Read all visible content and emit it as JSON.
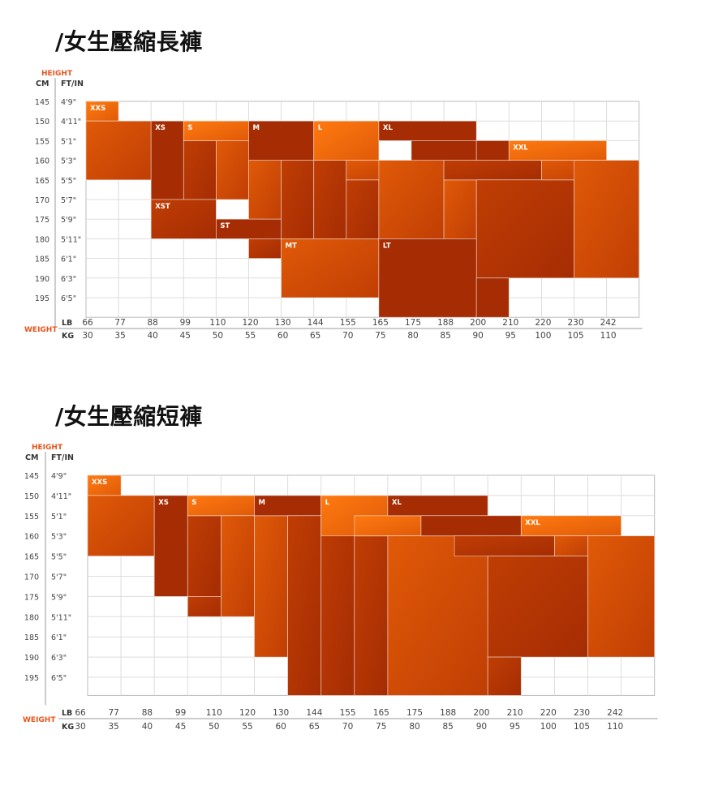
{
  "labels": {
    "height": "HEIGHT",
    "weight": "WEIGHT",
    "cm": "CM",
    "ftin": "FT/IN",
    "lb": "LB",
    "kg": "KG"
  },
  "colors": {
    "accent": "#e8541c",
    "light": "#ff7a10",
    "mid": "#e05a08",
    "dark": "#c03e04",
    "darker": "#a52c03",
    "grid": "#dddddd"
  },
  "chart_data": [
    {
      "type": "table",
      "title": "/女生壓縮長褲",
      "cm": [
        "145",
        "150",
        "155",
        "160",
        "165",
        "170",
        "175",
        "180",
        "185",
        "190",
        "195"
      ],
      "ftin": [
        "4'9\"",
        "4'11\"",
        "5'1\"",
        "5'3\"",
        "5'5\"",
        "5'7\"",
        "5'9\"",
        "5'11\"",
        "6'1\"",
        "6'3\"",
        "6'5\""
      ],
      "lb": [
        "66",
        "77",
        "88",
        "99",
        "110",
        "120",
        "130",
        "144",
        "155",
        "165",
        "175",
        "188",
        "200",
        "210",
        "220",
        "230",
        "242"
      ],
      "kg": [
        "30",
        "35",
        "40",
        "45",
        "50",
        "55",
        "60",
        "65",
        "70",
        "75",
        "80",
        "85",
        "90",
        "95",
        "100",
        "105",
        "110"
      ],
      "regions": [
        {
          "size": "XXS",
          "label": "XXS",
          "col": 0,
          "row": 0,
          "cols": 1,
          "rows": 1,
          "shade": "light"
        },
        {
          "size": "XXS",
          "label": "",
          "col": 0,
          "row": 1,
          "cols": 2,
          "rows": 3,
          "shade": "mid"
        },
        {
          "size": "XS",
          "label": "XS",
          "col": 2,
          "row": 1,
          "cols": 1,
          "rows": 4,
          "shade": "darker"
        },
        {
          "size": "XS",
          "label": "",
          "col": 3,
          "row": 2,
          "cols": 1,
          "rows": 3,
          "shade": "dark"
        },
        {
          "size": "S",
          "label": "S",
          "col": 3,
          "row": 1,
          "cols": 2,
          "rows": 1,
          "shade": "light"
        },
        {
          "size": "S",
          "label": "",
          "col": 4,
          "row": 2,
          "cols": 1,
          "rows": 3,
          "shade": "mid"
        },
        {
          "size": "S",
          "label": "",
          "col": 5,
          "row": 3,
          "cols": 1,
          "rows": 3,
          "shade": "mid"
        },
        {
          "size": "XST",
          "label": "XST",
          "col": 2,
          "row": 5,
          "cols": 2,
          "rows": 2,
          "shade": "dark"
        },
        {
          "size": "ST",
          "label": "ST",
          "col": 4,
          "row": 6,
          "cols": 2,
          "rows": 1,
          "shade": "darker"
        },
        {
          "size": "ST",
          "label": "",
          "col": 5,
          "row": 7,
          "cols": 1,
          "rows": 1,
          "shade": "dark"
        },
        {
          "size": "M",
          "label": "M",
          "col": 5,
          "row": 1,
          "cols": 2,
          "rows": 2,
          "shade": "darker"
        },
        {
          "size": "M",
          "label": "",
          "col": 6,
          "row": 3,
          "cols": 1,
          "rows": 4,
          "shade": "dark"
        },
        {
          "size": "M",
          "label": "",
          "col": 7,
          "row": 3,
          "cols": 1,
          "rows": 4,
          "shade": "dark"
        },
        {
          "size": "M",
          "label": "",
          "col": 8,
          "row": 4,
          "cols": 1,
          "rows": 3,
          "shade": "dark"
        },
        {
          "size": "MT",
          "label": "MT",
          "col": 6,
          "row": 7,
          "cols": 3,
          "rows": 3,
          "shade": "mid"
        },
        {
          "size": "L",
          "label": "L",
          "col": 7,
          "row": 1,
          "cols": 2,
          "rows": 2,
          "shade": "light"
        },
        {
          "size": "L",
          "label": "",
          "col": 8,
          "row": 3,
          "cols": 2,
          "rows": 1,
          "shade": "mid"
        },
        {
          "size": "L",
          "label": "",
          "col": 9,
          "row": 3,
          "cols": 2,
          "rows": 4,
          "shade": "mid"
        },
        {
          "size": "L",
          "label": "",
          "col": 11,
          "row": 4,
          "cols": 1,
          "rows": 3,
          "shade": "mid"
        },
        {
          "size": "XL",
          "label": "XL",
          "col": 9,
          "row": 1,
          "cols": 3,
          "rows": 1,
          "shade": "darker"
        },
        {
          "size": "XL",
          "label": "",
          "col": 10,
          "row": 2,
          "cols": 2,
          "rows": 1,
          "shade": "darker"
        },
        {
          "size": "XL",
          "label": "",
          "col": 12,
          "row": 2,
          "cols": 1,
          "rows": 1,
          "shade": "darker"
        },
        {
          "size": "XL",
          "label": "",
          "col": 11,
          "row": 3,
          "cols": 3,
          "rows": 1,
          "shade": "dark"
        },
        {
          "size": "XL",
          "label": "",
          "col": 12,
          "row": 4,
          "cols": 3,
          "rows": 5,
          "shade": "dark"
        },
        {
          "size": "LT",
          "label": "LT",
          "col": 9,
          "row": 7,
          "cols": 3,
          "rows": 5,
          "shade": "darker"
        },
        {
          "size": "LT",
          "label": "",
          "col": 12,
          "row": 9,
          "cols": 1,
          "rows": 2,
          "shade": "darker"
        },
        {
          "size": "XXL",
          "label": "XXL",
          "col": 13,
          "row": 2,
          "cols": 3,
          "rows": 1,
          "shade": "light"
        },
        {
          "size": "XXL",
          "label": "",
          "col": 14,
          "row": 3,
          "cols": 2,
          "rows": 1,
          "shade": "mid"
        },
        {
          "size": "XXL",
          "label": "",
          "col": 15,
          "row": 3,
          "cols": 2,
          "rows": 6,
          "shade": "mid"
        }
      ]
    },
    {
      "type": "table",
      "title": "/女生壓縮短褲",
      "cm": [
        "145",
        "150",
        "155",
        "160",
        "165",
        "170",
        "175",
        "180",
        "185",
        "190",
        "195"
      ],
      "ftin": [
        "4'9\"",
        "4'11\"",
        "5'1\"",
        "5'3\"",
        "5'5\"",
        "5'7\"",
        "5'9\"",
        "5'11\"",
        "6'1\"",
        "6'3\"",
        "6'5\""
      ],
      "lb": [
        "66",
        "77",
        "88",
        "99",
        "110",
        "120",
        "130",
        "144",
        "155",
        "165",
        "175",
        "188",
        "200",
        "210",
        "220",
        "230",
        "242"
      ],
      "kg": [
        "30",
        "35",
        "40",
        "45",
        "50",
        "55",
        "60",
        "65",
        "70",
        "75",
        "80",
        "85",
        "90",
        "95",
        "100",
        "105",
        "110"
      ],
      "regions": [
        {
          "size": "XXS",
          "label": "XXS",
          "col": 0,
          "row": 0,
          "cols": 1,
          "rows": 1,
          "shade": "light"
        },
        {
          "size": "XXS",
          "label": "",
          "col": 0,
          "row": 1,
          "cols": 2,
          "rows": 3,
          "shade": "mid"
        },
        {
          "size": "XS",
          "label": "XS",
          "col": 2,
          "row": 1,
          "cols": 1,
          "rows": 5,
          "shade": "darker"
        },
        {
          "size": "XS",
          "label": "",
          "col": 3,
          "row": 2,
          "cols": 1,
          "rows": 4,
          "shade": "dark"
        },
        {
          "size": "XS",
          "label": "",
          "col": 3,
          "row": 6,
          "cols": 1,
          "rows": 1,
          "shade": "dark"
        },
        {
          "size": "S",
          "label": "S",
          "col": 3,
          "row": 1,
          "cols": 2,
          "rows": 1,
          "shade": "light"
        },
        {
          "size": "S",
          "label": "",
          "col": 4,
          "row": 2,
          "cols": 1,
          "rows": 5,
          "shade": "mid"
        },
        {
          "size": "S",
          "label": "",
          "col": 5,
          "row": 2,
          "cols": 1,
          "rows": 7,
          "shade": "mid"
        },
        {
          "size": "M",
          "label": "M",
          "col": 5,
          "row": 1,
          "cols": 2,
          "rows": 1,
          "shade": "darker"
        },
        {
          "size": "M",
          "label": "",
          "col": 6,
          "row": 2,
          "cols": 1,
          "rows": 10,
          "shade": "dark"
        },
        {
          "size": "M",
          "label": "",
          "col": 7,
          "row": 1,
          "cols": 1,
          "rows": 11,
          "shade": "dark"
        },
        {
          "size": "M",
          "label": "",
          "col": 8,
          "row": 3,
          "cols": 1,
          "rows": 9,
          "shade": "dark"
        },
        {
          "size": "L",
          "label": "L",
          "col": 7,
          "row": 1,
          "cols": 2,
          "rows": 2,
          "shade": "light"
        },
        {
          "size": "L",
          "label": "",
          "col": 8,
          "row": 2,
          "cols": 2,
          "rows": 1,
          "shade": "light"
        },
        {
          "size": "L",
          "label": "",
          "col": 9,
          "row": 3,
          "cols": 3,
          "rows": 10,
          "shade": "mid"
        },
        {
          "size": "XL",
          "label": "XL",
          "col": 9,
          "row": 1,
          "cols": 3,
          "rows": 1,
          "shade": "darker"
        },
        {
          "size": "XL",
          "label": "",
          "col": 10,
          "row": 2,
          "cols": 3,
          "rows": 1,
          "shade": "darker"
        },
        {
          "size": "XL",
          "label": "",
          "col": 11,
          "row": 3,
          "cols": 3,
          "rows": 1,
          "shade": "dark"
        },
        {
          "size": "XL",
          "label": "",
          "col": 12,
          "row": 4,
          "cols": 3,
          "rows": 5,
          "shade": "dark"
        },
        {
          "size": "XL",
          "label": "",
          "col": 12,
          "row": 9,
          "cols": 1,
          "rows": 2,
          "shade": "dark"
        },
        {
          "size": "XXL",
          "label": "XXL",
          "col": 13,
          "row": 2,
          "cols": 3,
          "rows": 1,
          "shade": "light"
        },
        {
          "size": "XXL",
          "label": "",
          "col": 14,
          "row": 3,
          "cols": 1,
          "rows": 1,
          "shade": "mid"
        },
        {
          "size": "XXL",
          "label": "",
          "col": 15,
          "row": 3,
          "cols": 2,
          "rows": 6,
          "shade": "mid"
        }
      ]
    }
  ]
}
